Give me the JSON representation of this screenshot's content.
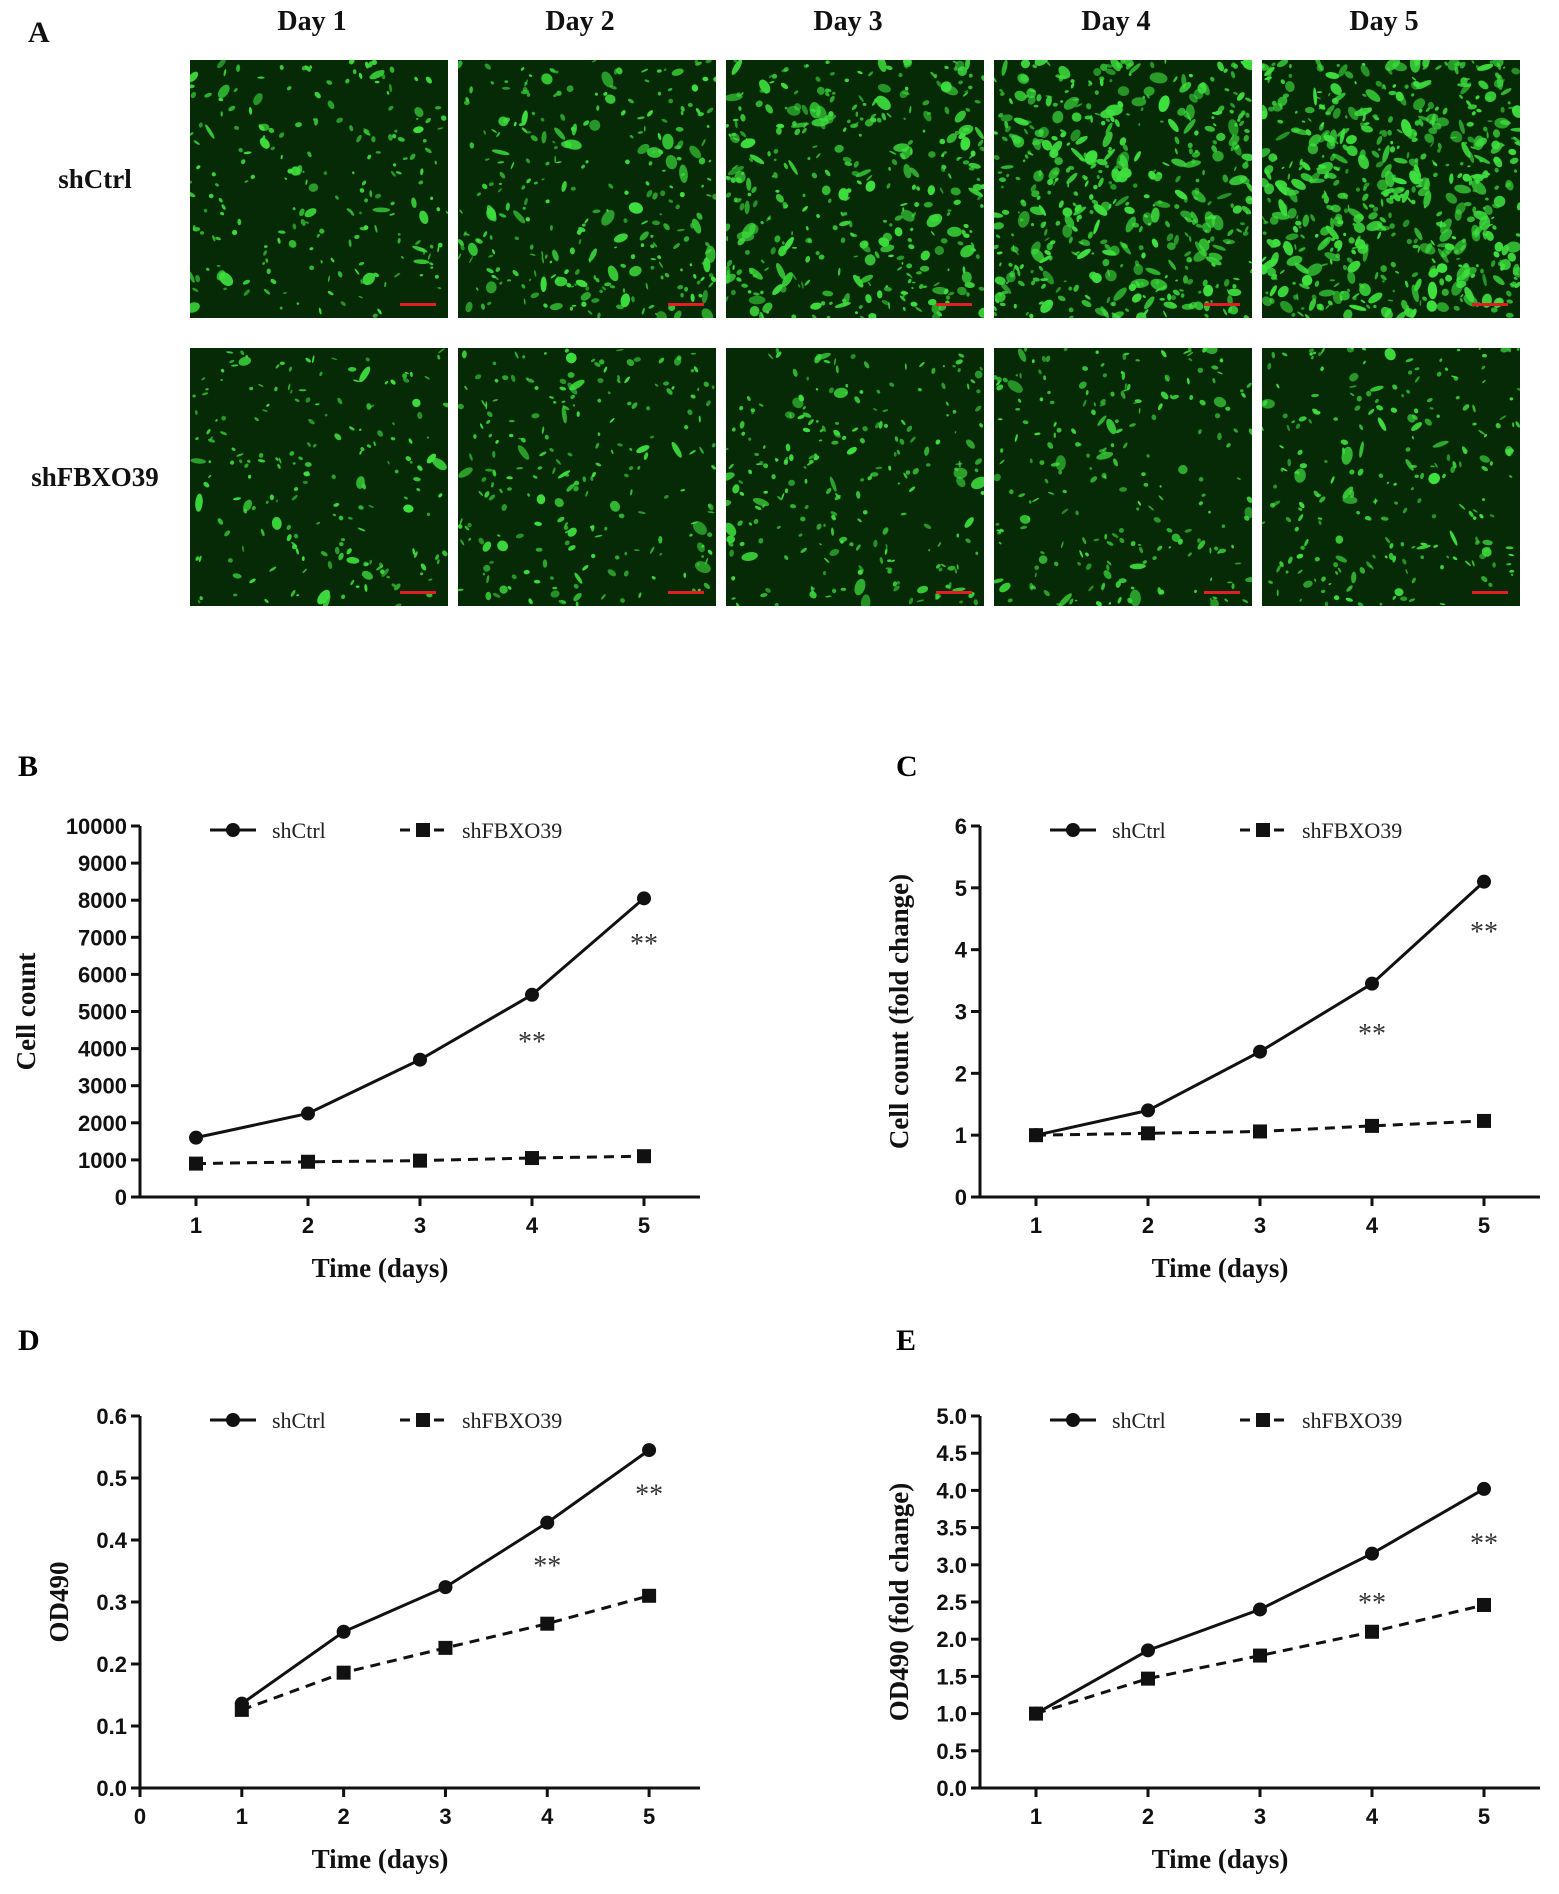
{
  "figure": {
    "panel_A": {
      "letter": "A",
      "columns": [
        "Day 1",
        "Day 2",
        "Day 3",
        "Day 4",
        "Day 5"
      ],
      "rows": [
        "shCtrl",
        "shFBXO39"
      ],
      "cell_density": [
        [
          0.25,
          0.4,
          0.6,
          0.8,
          0.95
        ],
        [
          0.22,
          0.27,
          0.3,
          0.28,
          0.3
        ]
      ],
      "colors": {
        "background": "#062a06",
        "cells": "#3ee03e",
        "scale_bar": "#e02020"
      }
    }
  },
  "chart_data": [
    {
      "panel": "B",
      "type": "line",
      "x": [
        1,
        2,
        3,
        4,
        5
      ],
      "xlabel": "Time (days)",
      "ylabel": "Cell count",
      "xlim": [
        0.5,
        5.5
      ],
      "ylim": [
        0,
        10000
      ],
      "yticks": [
        "0",
        "1000",
        "2000",
        "3000",
        "4000",
        "5000",
        "6000",
        "7000",
        "8000",
        "9000",
        "10000"
      ],
      "xticks": [
        "1",
        "2",
        "3",
        "4",
        "5"
      ],
      "series": [
        {
          "name": "shCtrl",
          "values": [
            1600,
            2250,
            3700,
            5450,
            8050
          ],
          "marker": "circle",
          "line": "solid"
        },
        {
          "name": "shFBXO39",
          "values": [
            900,
            950,
            980,
            1050,
            1100
          ],
          "marker": "square",
          "line": "dashed"
        }
      ],
      "annotations": [
        {
          "x": 4,
          "y": 4200,
          "text": "**"
        },
        {
          "x": 5,
          "y": 6850,
          "text": "**"
        }
      ],
      "legend": "top"
    },
    {
      "panel": "C",
      "type": "line",
      "x": [
        1,
        2,
        3,
        4,
        5
      ],
      "xlabel": "Time (days)",
      "ylabel": "Cell count (fold change)",
      "xlim": [
        0.5,
        5.5
      ],
      "ylim": [
        0,
        6
      ],
      "yticks": [
        "0",
        "1",
        "2",
        "3",
        "4",
        "5",
        "6"
      ],
      "xticks": [
        "1",
        "2",
        "3",
        "4",
        "5"
      ],
      "series": [
        {
          "name": "shCtrl",
          "values": [
            1.0,
            1.4,
            2.35,
            3.45,
            5.1
          ],
          "marker": "circle",
          "line": "solid"
        },
        {
          "name": "shFBXO39",
          "values": [
            1.0,
            1.03,
            1.06,
            1.15,
            1.23
          ],
          "marker": "square",
          "line": "dashed"
        }
      ],
      "annotations": [
        {
          "x": 4,
          "y": 2.65,
          "text": "**"
        },
        {
          "x": 5,
          "y": 4.3,
          "text": "**"
        }
      ],
      "legend": "top"
    },
    {
      "panel": "D",
      "type": "line",
      "x": [
        1,
        2,
        3,
        4,
        5
      ],
      "xlabel": "Time (days)",
      "ylabel": "OD490",
      "xlim": [
        0,
        5.5
      ],
      "ylim": [
        0,
        0.6
      ],
      "yticks": [
        "0.0",
        "0.1",
        "0.2",
        "0.3",
        "0.4",
        "0.5",
        "0.6"
      ],
      "xticks": [
        "0",
        "1",
        "2",
        "3",
        "4",
        "5"
      ],
      "series": [
        {
          "name": "shCtrl",
          "values": [
            0.136,
            0.252,
            0.324,
            0.428,
            0.545
          ],
          "marker": "circle",
          "line": "solid"
        },
        {
          "name": "shFBXO39",
          "values": [
            0.126,
            0.186,
            0.226,
            0.265,
            0.31
          ],
          "marker": "square",
          "line": "dashed"
        }
      ],
      "annotations": [
        {
          "x": 4,
          "y": 0.36,
          "text": "**"
        },
        {
          "x": 5,
          "y": 0.475,
          "text": "**"
        }
      ],
      "legend": "top"
    },
    {
      "panel": "E",
      "type": "line",
      "x": [
        1,
        2,
        3,
        4,
        5
      ],
      "xlabel": "Time (days)",
      "ylabel": "OD490 (fold change)",
      "xlim": [
        0.5,
        5.5
      ],
      "ylim": [
        0,
        5
      ],
      "yticks": [
        "0.0",
        "0.5",
        "1.0",
        "1.5",
        "2.0",
        "2.5",
        "3.0",
        "3.5",
        "4.0",
        "4.5",
        "5.0"
      ],
      "xticks": [
        "1",
        "2",
        "3",
        "4",
        "5"
      ],
      "series": [
        {
          "name": "shCtrl",
          "values": [
            1.0,
            1.85,
            2.4,
            3.15,
            4.02
          ],
          "marker": "circle",
          "line": "solid"
        },
        {
          "name": "shFBXO39",
          "values": [
            1.0,
            1.47,
            1.78,
            2.1,
            2.46
          ],
          "marker": "square",
          "line": "dashed"
        }
      ],
      "annotations": [
        {
          "x": 4,
          "y": 2.5,
          "text": "**"
        },
        {
          "x": 5,
          "y": 3.3,
          "text": "**"
        }
      ],
      "legend": "top"
    }
  ]
}
